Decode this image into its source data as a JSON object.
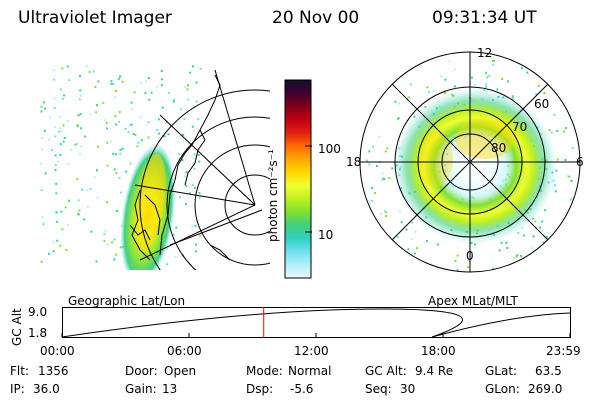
{
  "header": {
    "instrument": "Ultraviolet Imager",
    "date": "20 Nov 00",
    "time": "09:31:34 UT"
  },
  "left_panel": {
    "caption": "Geographic Lat/Lon"
  },
  "right_panel": {
    "caption": "Apex MLat/MLT",
    "mlt_labels": {
      "top": "12",
      "left": "18",
      "right": "6",
      "bottom": "0"
    },
    "lat_labels": [
      "60",
      "70",
      "80"
    ]
  },
  "colorbar": {
    "label": "photon cm⁻²s⁻¹",
    "ticks": [
      {
        "label": "100",
        "value": 100
      },
      {
        "label": "10",
        "value": 10
      }
    ],
    "colors": [
      "#101030",
      "#400030",
      "#800018",
      "#c00010",
      "#e02010",
      "#ff6a00",
      "#ffa500",
      "#ffd800",
      "#f0ff30",
      "#c0f020",
      "#80e030",
      "#40d080",
      "#30d0c0",
      "#70e0f0",
      "#b0f0f8",
      "#e8fafc"
    ]
  },
  "altitude_plot": {
    "ylabel": "GC Alt",
    "yticks": [
      "9.0",
      "1.8"
    ],
    "xticks": [
      "00:00",
      "06:00",
      "12:00",
      "18:00",
      "23:59"
    ],
    "marker_time_hours": 9.53,
    "marker_color": "#ff0000"
  },
  "info": {
    "row1": [
      {
        "key": "Flt:",
        "value": "1356"
      },
      {
        "key": "Door:",
        "value": "Open"
      },
      {
        "key": "Mode:",
        "value": "Normal"
      },
      {
        "key": "GC Alt:",
        "value": "9.4 Re"
      },
      {
        "key": "GLat:",
        "value": "63.5"
      }
    ],
    "row2": [
      {
        "key": "IP:",
        "value": "36.0"
      },
      {
        "key": "Gain:",
        "value": "13"
      },
      {
        "key": "Dsp:",
        "value": "-5.6"
      },
      {
        "key": "Seq:",
        "value": "30"
      },
      {
        "key": "GLon:",
        "value": "269.0"
      }
    ]
  }
}
